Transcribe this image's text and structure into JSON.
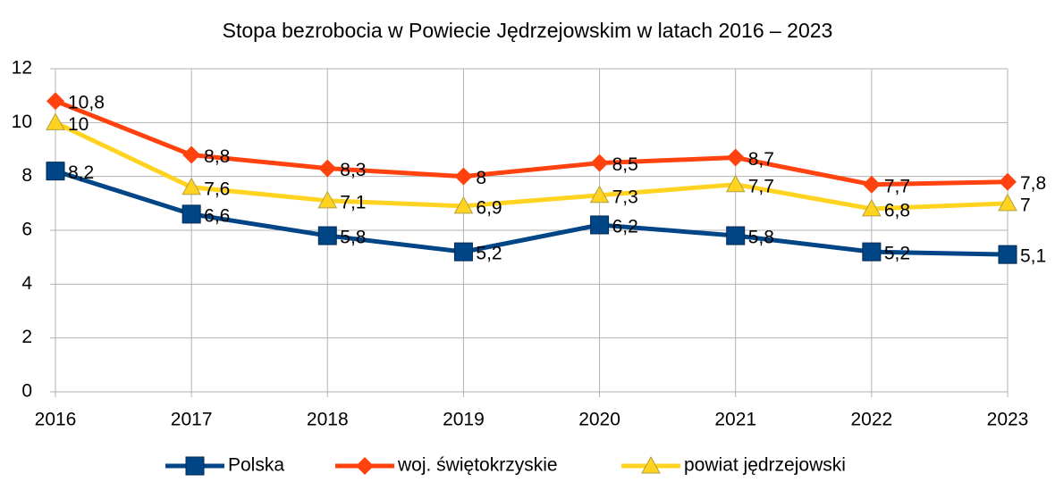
{
  "chart_data": {
    "type": "line",
    "title": "Stopa bezrobocia w Powiecie Jędrzejowskim w latach 2016 – 2023",
    "categories": [
      "2016",
      "2017",
      "2018",
      "2019",
      "2020",
      "2021",
      "2022",
      "2023"
    ],
    "series": [
      {
        "name": "Polska",
        "color": "#004586",
        "marker": "square",
        "values": [
          8.2,
          6.6,
          5.8,
          5.2,
          6.2,
          5.8,
          5.2,
          5.1
        ],
        "value_labels": [
          "8,2",
          "6,6",
          "5,8",
          "5,2",
          "6,2",
          "5,8",
          "5,2",
          "5,1"
        ]
      },
      {
        "name": "woj. świętokrzyskie",
        "color": "#ff420e",
        "marker": "diamond",
        "values": [
          10.8,
          8.8,
          8.3,
          8,
          8.5,
          8.7,
          7.7,
          7.8
        ],
        "value_labels": [
          "10,8",
          "8,8",
          "8,3",
          "8",
          "8,5",
          "8,7",
          "7,7",
          "7,8"
        ]
      },
      {
        "name": "powiat jędrzejowski",
        "color": "#ffd320",
        "marker": "triangle",
        "values": [
          10,
          7.6,
          7.1,
          6.9,
          7.3,
          7.7,
          6.8,
          7
        ],
        "value_labels": [
          "10",
          "7,6",
          "7,1",
          "6,9",
          "7,3",
          "7,7",
          "6,8",
          "7"
        ]
      }
    ],
    "ylim": [
      0,
      12
    ],
    "yticks": [
      0,
      2,
      4,
      6,
      8,
      10,
      12
    ],
    "grid": true,
    "legend": "bottom"
  }
}
